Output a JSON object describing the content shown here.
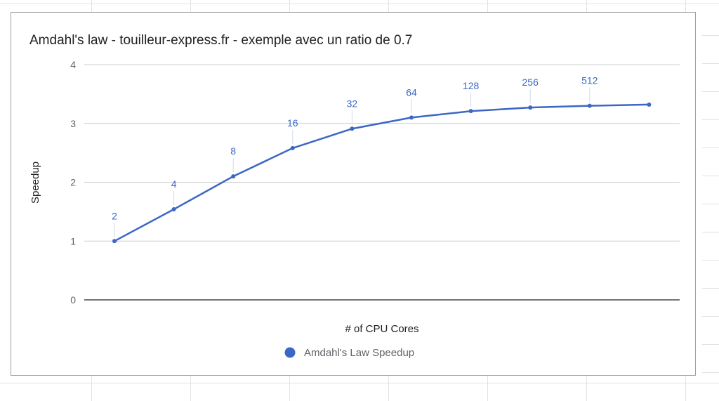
{
  "chart_data": {
    "type": "line",
    "title": "Amdahl's law - touilleur-express.fr - exemple avec un ratio de 0.7",
    "xlabel": "# of CPU Cores",
    "ylabel": "Speedup",
    "ylim": [
      0,
      4
    ],
    "yticks": [
      0,
      1,
      2,
      3,
      4
    ],
    "grid": true,
    "legend_position": "bottom",
    "series": [
      {
        "name": "Amdahl's Law Speedup",
        "color": "#3c67c4",
        "x": [
          "2",
          "4",
          "8",
          "16",
          "32",
          "64",
          "128",
          "256",
          "512",
          ""
        ],
        "values": [
          1.0,
          1.54,
          2.1,
          2.58,
          2.91,
          3.1,
          3.21,
          3.27,
          3.3,
          3.32
        ]
      }
    ]
  }
}
